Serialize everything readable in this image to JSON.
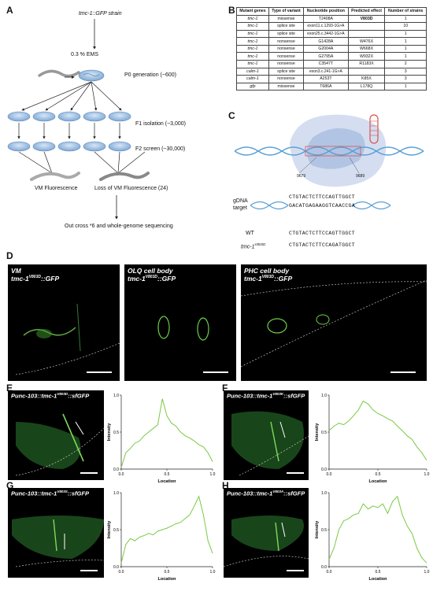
{
  "panelA": {
    "label": "A",
    "strain": "tmc-1::GFP strain",
    "ems": "0.3 % EMS",
    "p0": "P0 generation (~600)",
    "f1": "F1 isolation (~3,000)",
    "f2": "F2 screen (~30,000)",
    "vm": "VM Fluorescence",
    "loss": "Loss of VM Fluorescence (24)",
    "outcross": "Out cross *6 and whole-genome sequencing"
  },
  "panelB": {
    "label": "B",
    "headers": [
      "Mutant genes",
      "Type of variant",
      "Nucleotide position",
      "Predicted effect",
      "Number of strains"
    ],
    "rows": [
      [
        "tmc-1",
        "missense",
        "T2408A",
        "V803D",
        "1"
      ],
      [
        "tmc-1",
        "splice site",
        "exon11.c.1293-1G>A",
        "",
        "10"
      ],
      [
        "tmc-1",
        "splice site",
        "exon25.c.3442-1G>A",
        "",
        "1"
      ],
      [
        "tmc-1",
        "nonsense",
        "G1428A",
        "W476X",
        "1"
      ],
      [
        "tmc-1",
        "nonsense",
        "G2004A",
        "W668X",
        "1"
      ],
      [
        "tmc-1",
        "nonsense",
        "G2795A",
        "W932X",
        "1"
      ],
      [
        "tmc-1",
        "nonsense",
        "C3547T",
        "R1183X",
        "2"
      ],
      [
        "calm-1",
        "splice site",
        "exon3.c.241-1G>A",
        "",
        "3"
      ],
      [
        "calm-1",
        "nonsense",
        "A253T",
        "K85X",
        "3"
      ],
      [
        "gfp",
        "missense",
        "T686A",
        "L178Q",
        "1"
      ]
    ]
  },
  "panelC": {
    "label": "C",
    "pos1": "9679",
    "pos2": "9689",
    "gdna": "gDNA",
    "target": "target",
    "seq_top": "CTGTACTCTTCCAGTTGGCT",
    "seq_bottom": "GACATGAGAAGGTCAACCGA",
    "wt_label": "WT",
    "wt_seq": "CTGTACTCTTCCAGTTGGCT",
    "mut_label_base": "tmc-1",
    "mut_label_sup": "V803D",
    "mut_seq": "CTGTACTCTTCCAGATGGCT"
  },
  "panelD": {
    "label": "D",
    "images": [
      {
        "line1": "VM",
        "gene": "tmc-1",
        "sup": "V803D",
        "suffix": "::GFP"
      },
      {
        "line1": "OLQ cell body",
        "gene": "tmc-1",
        "sup": "V803D",
        "suffix": "::GFP"
      },
      {
        "line1": "PHC cell body",
        "gene": "tmc-1",
        "sup": "V803D",
        "suffix": "::GFP"
      }
    ]
  },
  "panels_EH": [
    {
      "label": "E",
      "title_pre": "Punc-103::tmc-1",
      "sup": "V803D",
      "title_post": "::sfGFP"
    },
    {
      "label": "F",
      "title_pre": "Punc-103::tmc-1",
      "sup": "V803K",
      "title_post": "::sfGFP"
    },
    {
      "label": "G",
      "title_pre": "Punc-103::tmc-1",
      "sup": "V803S",
      "title_post": "::sfGFP"
    },
    {
      "label": "H",
      "title_pre": "Punc-103::tmc-1",
      "sup": "V803A",
      "title_post": "::sfGFP"
    }
  ],
  "chart_data": [
    {
      "type": "line",
      "panel": "E",
      "xlabel": "Location",
      "ylabel": "Intensity",
      "xlim": [
        0,
        1
      ],
      "ylim": [
        0,
        1
      ],
      "xticks": [
        "0.0",
        "0.5",
        "1.0"
      ],
      "yticks": [
        "0.0",
        "0.5",
        "1.0"
      ],
      "x": [
        0.0,
        0.05,
        0.1,
        0.15,
        0.2,
        0.25,
        0.3,
        0.35,
        0.4,
        0.45,
        0.5,
        0.55,
        0.6,
        0.65,
        0.7,
        0.75,
        0.8,
        0.85,
        0.9,
        0.95,
        1.0
      ],
      "y": [
        0.02,
        0.22,
        0.28,
        0.35,
        0.38,
        0.45,
        0.5,
        0.55,
        0.6,
        0.95,
        0.72,
        0.62,
        0.58,
        0.5,
        0.45,
        0.42,
        0.38,
        0.33,
        0.3,
        0.22,
        0.1
      ],
      "color": "#7ac943"
    },
    {
      "type": "line",
      "panel": "F",
      "xlabel": "Location",
      "ylabel": "Intensity",
      "xlim": [
        0,
        1
      ],
      "ylim": [
        0,
        1
      ],
      "xticks": [
        "0.0",
        "0.5",
        "1.0"
      ],
      "yticks": [
        "0.0",
        "0.5",
        "1.0"
      ],
      "x": [
        0.0,
        0.05,
        0.1,
        0.15,
        0.2,
        0.25,
        0.3,
        0.35,
        0.4,
        0.45,
        0.5,
        0.55,
        0.6,
        0.65,
        0.7,
        0.75,
        0.8,
        0.85,
        0.9,
        0.95,
        1.0
      ],
      "y": [
        0.52,
        0.58,
        0.62,
        0.6,
        0.65,
        0.72,
        0.8,
        0.92,
        0.88,
        0.8,
        0.75,
        0.72,
        0.68,
        0.65,
        0.58,
        0.52,
        0.45,
        0.4,
        0.3,
        0.22,
        0.12
      ],
      "color": "#7ac943"
    },
    {
      "type": "line",
      "panel": "G",
      "xlabel": "Location",
      "ylabel": "Intensity",
      "xlim": [
        0,
        1
      ],
      "ylim": [
        0,
        1
      ],
      "xticks": [
        "0.0",
        "0.5",
        "1.0"
      ],
      "yticks": [
        "0.0",
        "0.5",
        "1.0"
      ],
      "x": [
        0.0,
        0.05,
        0.1,
        0.15,
        0.2,
        0.25,
        0.3,
        0.35,
        0.4,
        0.45,
        0.5,
        0.55,
        0.6,
        0.65,
        0.7,
        0.75,
        0.8,
        0.85,
        0.9,
        0.95,
        1.0
      ],
      "y": [
        0.05,
        0.3,
        0.38,
        0.35,
        0.4,
        0.42,
        0.45,
        0.43,
        0.48,
        0.5,
        0.52,
        0.55,
        0.58,
        0.6,
        0.65,
        0.7,
        0.82,
        0.95,
        0.7,
        0.35,
        0.18
      ],
      "color": "#7ac943"
    },
    {
      "type": "line",
      "panel": "H",
      "xlabel": "Location",
      "ylabel": "Intensity",
      "xlim": [
        0,
        1
      ],
      "ylim": [
        0,
        1
      ],
      "xticks": [
        "0.0",
        "0.5",
        "1.0"
      ],
      "yticks": [
        "0.0",
        "0.5",
        "1.0"
      ],
      "x": [
        0.0,
        0.05,
        0.1,
        0.15,
        0.2,
        0.25,
        0.3,
        0.35,
        0.4,
        0.45,
        0.5,
        0.55,
        0.6,
        0.65,
        0.7,
        0.75,
        0.8,
        0.85,
        0.9,
        0.95,
        1.0
      ],
      "y": [
        0.1,
        0.25,
        0.5,
        0.62,
        0.65,
        0.7,
        0.72,
        0.85,
        0.78,
        0.82,
        0.8,
        0.85,
        0.72,
        0.88,
        0.95,
        0.7,
        0.55,
        0.45,
        0.25,
        0.12,
        0.05
      ],
      "color": "#7ac943"
    }
  ]
}
